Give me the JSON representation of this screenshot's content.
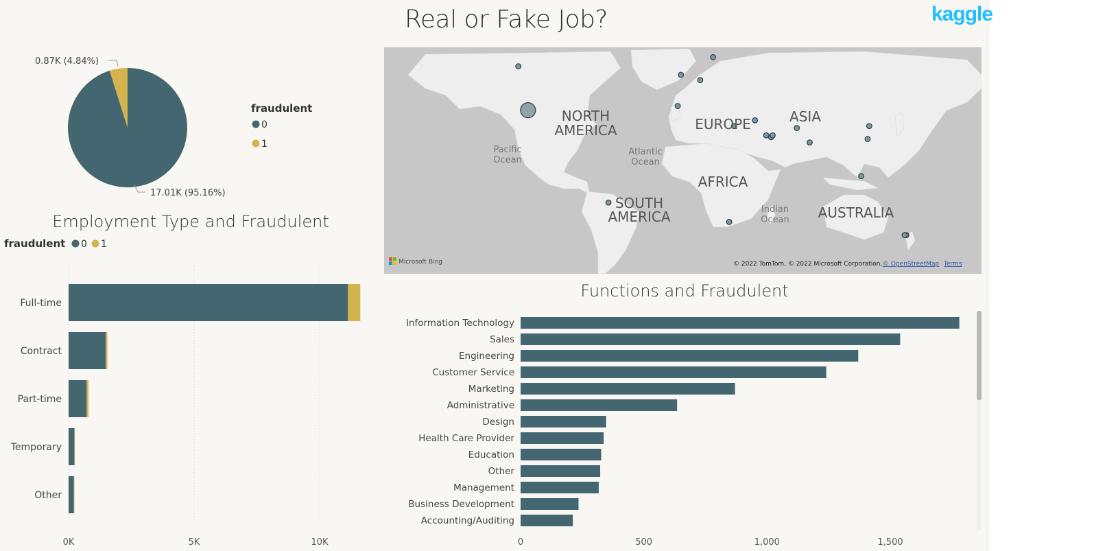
{
  "header": {
    "title": "Real or Fake Job?",
    "logo_text": "kaggle"
  },
  "colors": {
    "series0": "#436670",
    "series1": "#d3b34e",
    "background": "#f8f7f3",
    "map_land": "#eeeeee",
    "map_water": "#c7c7c7",
    "kaggle_blue": "#20beff"
  },
  "pie": {
    "legend_title": "fraudulent",
    "legend_items": [
      "0",
      "1"
    ]
  },
  "employment": {
    "title": "Employment Type and Fraudulent",
    "legend_title": "fraudulent",
    "legend_items": [
      "0",
      "1"
    ]
  },
  "map": {
    "labels": {
      "north_america": [
        "NORTH",
        "AMERICA"
      ],
      "south_america": [
        "SOUTH",
        "AMERICA"
      ],
      "europe": "EUROPE",
      "asia": "ASIA",
      "africa": "AFRICA",
      "australia": "AUSTRALIA",
      "pacific": [
        "Pacific",
        "Ocean"
      ],
      "atlantic": [
        "Atlantic",
        "Ocean"
      ],
      "indian": [
        "Indian",
        "Ocean"
      ]
    },
    "attribution": "© 2022 TomTom, © 2022 Microsoft Corporation,",
    "osm_link": "© OpenStreetMap",
    "terms_link": "Terms",
    "bing_label": "Microsoft Bing"
  },
  "functions": {
    "title": "Functions and Fraudulent"
  },
  "chart_data": [
    {
      "type": "pie",
      "legend_title": "fraudulent",
      "slices": [
        {
          "name": "0",
          "value": 17.01,
          "label": "17.01K (95.16%)",
          "percent": 95.16
        },
        {
          "name": "1",
          "value": 0.87,
          "label": "0.87K (4.84%)",
          "percent": 4.84
        }
      ]
    },
    {
      "type": "bar",
      "title": "Employment Type and Fraudulent",
      "orientation": "horizontal",
      "stacked": true,
      "categories": [
        "Full-time",
        "Contract",
        "Part-time",
        "Temporary",
        "Other"
      ],
      "series": [
        {
          "name": "0",
          "values": [
            11130,
            1480,
            720,
            230,
            210
          ]
        },
        {
          "name": "1",
          "values": [
            490,
            64,
            74,
            7,
            15
          ]
        }
      ],
      "xlim": [
        0,
        12500
      ],
      "xticks": [
        0,
        5000,
        10000
      ],
      "xtick_labels": [
        "0K",
        "5K",
        "10K"
      ],
      "legend_position": "top-left",
      "grid": true
    },
    {
      "type": "bar",
      "title": "Functions and Fraudulent",
      "orientation": "horizontal",
      "categories": [
        "Information Technology",
        "Sales",
        "Engineering",
        "Customer Service",
        "Marketing",
        "Administrative",
        "Design",
        "Health Care Provider",
        "Education",
        "Other",
        "Management",
        "Business Development",
        "Accounting/Auditing"
      ],
      "values": [
        1780,
        1540,
        1370,
        1240,
        870,
        635,
        347,
        337,
        327,
        323,
        317,
        235,
        212
      ],
      "xlim": [
        0,
        1870
      ],
      "xticks": [
        0,
        500,
        1000,
        1500
      ],
      "xtick_labels": [
        "0",
        "500",
        "1,000",
        "1,500"
      ],
      "grid": false
    },
    {
      "type": "scatter",
      "subtype": "map-bubbles",
      "points": [
        {
          "lon": -97,
          "lat": 38,
          "size": 5
        },
        {
          "lon": -103,
          "lat": 56,
          "size": 1
        },
        {
          "lon": -2,
          "lat": 53,
          "size": 1
        },
        {
          "lon": -4,
          "lat": 40,
          "size": 1
        },
        {
          "lon": 10,
          "lat": 51,
          "size": 1
        },
        {
          "lon": 18,
          "lat": 59,
          "size": 1
        },
        {
          "lon": 31,
          "lat": 30,
          "size": 1
        },
        {
          "lon": 44,
          "lat": 33,
          "size": 1
        },
        {
          "lon": 51,
          "lat": 25,
          "size": 1
        },
        {
          "lon": 54,
          "lat": 24,
          "size": 1
        },
        {
          "lon": 55,
          "lat": 25,
          "size": 1
        },
        {
          "lon": 70,
          "lat": 29,
          "size": 1
        },
        {
          "lon": 78,
          "lat": 21,
          "size": 1
        },
        {
          "lon": 114,
          "lat": 23,
          "size": 1
        },
        {
          "lon": 115,
          "lat": 30,
          "size": 1
        },
        {
          "lon": 110,
          "lat": 1,
          "size": 1
        },
        {
          "lon": -47,
          "lat": -15,
          "size": 1
        },
        {
          "lon": 28,
          "lat": -26,
          "size": 1
        },
        {
          "lon": 138,
          "lat": -33,
          "size": 1
        },
        {
          "lon": 137,
          "lat": -33,
          "size": 1
        }
      ]
    }
  ]
}
